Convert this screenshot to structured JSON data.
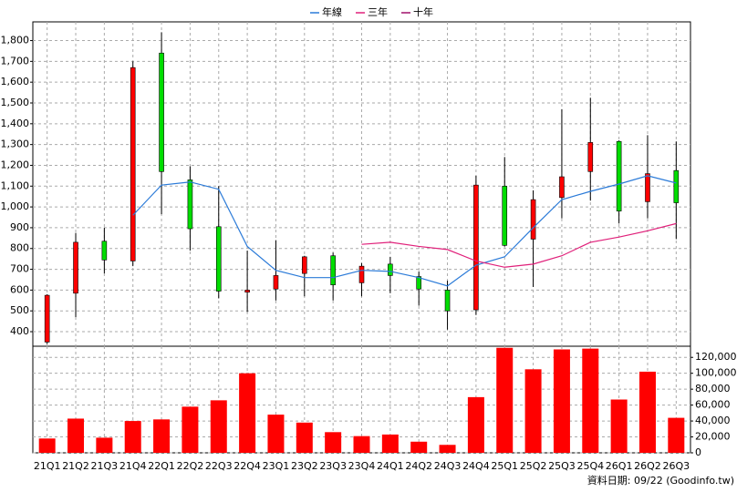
{
  "chart_data": [
    {
      "type": "candlestick",
      "categories": [
        "21Q1",
        "21Q2",
        "21Q3",
        "21Q4",
        "22Q1",
        "22Q2",
        "22Q3",
        "22Q4",
        "23Q1",
        "23Q2",
        "23Q3",
        "23Q4",
        "24Q1",
        "24Q2",
        "24Q3",
        "24Q4",
        "25Q1",
        "25Q2",
        "25Q3",
        "25Q4",
        "26Q1",
        "26Q2",
        "26Q3"
      ],
      "open": [
        350,
        585,
        835,
        740,
        1740,
        1130,
        905,
        590,
        605,
        680,
        765,
        635,
        725,
        665,
        600,
        505,
        1100,
        845,
        1045,
        1170,
        1315,
        1025,
        1175
      ],
      "high": [
        580,
        875,
        900,
        1700,
        1840,
        1195,
        1100,
        790,
        840,
        765,
        780,
        730,
        760,
        690,
        645,
        1150,
        1240,
        1080,
        1470,
        1525,
        1320,
        1345,
        1315
      ],
      "low": [
        340,
        470,
        680,
        715,
        965,
        790,
        560,
        495,
        550,
        570,
        550,
        570,
        585,
        525,
        410,
        480,
        810,
        615,
        945,
        1030,
        920,
        945,
        845
      ],
      "close": [
        575,
        830,
        745,
        1670,
        1170,
        895,
        595,
        600,
        670,
        760,
        625,
        715,
        670,
        605,
        500,
        1105,
        815,
        1035,
        1145,
        1310,
        980,
        1160,
        1020
      ],
      "up_color": "#ff0000",
      "down_color": "#00dd00",
      "series": [
        {
          "name": "年線",
          "color": "#2a7ad8",
          "values": [
            null,
            null,
            null,
            960,
            1105,
            1120,
            1085,
            810,
            695,
            660,
            660,
            695,
            690,
            660,
            620,
            720,
            760,
            900,
            1035,
            1075,
            1110,
            1150,
            1115
          ]
        },
        {
          "name": "三年",
          "color": "#e0207a",
          "values": [
            null,
            null,
            null,
            null,
            null,
            null,
            null,
            null,
            null,
            null,
            null,
            820,
            830,
            810,
            795,
            740,
            710,
            725,
            765,
            830,
            855,
            885,
            920
          ]
        },
        {
          "name": "十年",
          "color": "#a0106a",
          "values": [
            null,
            null,
            null,
            null,
            null,
            null,
            null,
            null,
            null,
            null,
            null,
            null,
            null,
            null,
            null,
            null,
            null,
            null,
            null,
            null,
            null,
            null,
            null
          ]
        }
      ],
      "ylim": [
        330,
        1890
      ],
      "yticks": [
        400,
        500,
        600,
        700,
        800,
        900,
        {
          "value": 1000,
          "label": "1,000"
        },
        {
          "value": 1100,
          "label": "1,100"
        },
        {
          "value": 1200,
          "label": "1,200"
        },
        {
          "value": 1300,
          "label": "1,300"
        },
        {
          "value": 1400,
          "label": "1,400"
        },
        {
          "value": 1500,
          "label": "1,500"
        },
        {
          "value": 1600,
          "label": "1,600"
        },
        {
          "value": 1700,
          "label": "1,700"
        },
        {
          "value": 1800,
          "label": "1,800"
        }
      ],
      "grid": true
    },
    {
      "type": "bar",
      "values": [
        18000,
        43000,
        19000,
        40000,
        42000,
        58000,
        66000,
        100000,
        48000,
        38000,
        26000,
        21000,
        23000,
        14000,
        10000,
        70000,
        132000,
        105000,
        130000,
        131000,
        67000,
        102000,
        44000
      ],
      "color": "#ff0000",
      "ylim": [
        0,
        134000
      ],
      "yticks": [
        0,
        {
          "value": 20000,
          "label": "20,000"
        },
        {
          "value": 40000,
          "label": "40,000"
        },
        {
          "value": 60000,
          "label": "60,000"
        },
        {
          "value": 80000,
          "label": "80,000"
        },
        {
          "value": 100000,
          "label": "100,000"
        },
        {
          "value": 120000,
          "label": "120,000"
        }
      ],
      "grid": true
    }
  ],
  "footer": "資料日期: 09/22 (Goodinfo.tw)"
}
